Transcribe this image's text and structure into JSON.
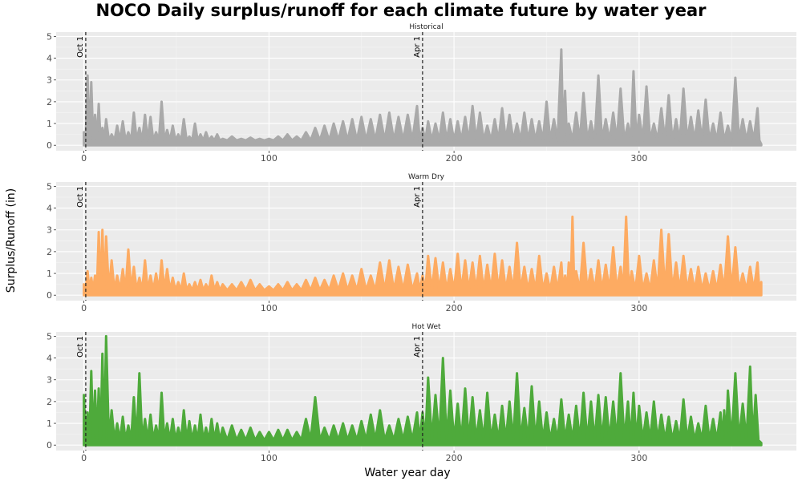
{
  "chart_data": {
    "type": "line",
    "title": "NOCO Daily surplus/runoff for each climate future by water year",
    "xlabel": "Water year day",
    "ylabel": "Surplus/Runoff (in)",
    "xlim": [
      -15,
      385
    ],
    "ylim": [
      -0.25,
      5.2
    ],
    "x_ticks": [
      0,
      100,
      200,
      300
    ],
    "y_ticks": [
      0,
      1,
      2,
      3,
      4,
      5
    ],
    "grid": true,
    "reference_lines": [
      {
        "x": 1,
        "label": "Oct 1"
      },
      {
        "x": 183,
        "label": "Apr 1"
      }
    ],
    "panels": [
      {
        "name": "Historical",
        "color": "#a9a9a9",
        "x": [
          0,
          2,
          4,
          6,
          8,
          10,
          12,
          15,
          18,
          21,
          24,
          27,
          30,
          33,
          36,
          39,
          42,
          45,
          48,
          51,
          54,
          57,
          60,
          63,
          66,
          69,
          72,
          75,
          80,
          85,
          90,
          95,
          100,
          105,
          110,
          115,
          120,
          125,
          130,
          135,
          140,
          145,
          150,
          155,
          160,
          165,
          170,
          175,
          180,
          183,
          186,
          190,
          194,
          198,
          202,
          206,
          210,
          214,
          218,
          222,
          226,
          230,
          234,
          238,
          242,
          246,
          250,
          254,
          258,
          260,
          262,
          266,
          270,
          274,
          278,
          282,
          286,
          290,
          294,
          297,
          300,
          304,
          308,
          312,
          316,
          320,
          324,
          328,
          332,
          336,
          340,
          344,
          348,
          352,
          356,
          360,
          364,
          366
        ],
        "y": [
          0.6,
          3.2,
          2.9,
          1.4,
          1.9,
          0.8,
          1.2,
          0.5,
          0.9,
          1.1,
          0.6,
          1.5,
          0.8,
          1.4,
          1.3,
          0.6,
          2.0,
          0.7,
          0.9,
          0.5,
          1.2,
          0.4,
          1.0,
          0.5,
          0.6,
          0.4,
          0.5,
          0.3,
          0.4,
          0.3,
          0.35,
          0.3,
          0.3,
          0.4,
          0.5,
          0.4,
          0.6,
          0.8,
          0.9,
          1.0,
          1.1,
          1.2,
          1.3,
          1.2,
          1.4,
          1.5,
          1.3,
          1.4,
          1.8,
          0.8,
          1.1,
          1.0,
          1.5,
          1.2,
          1.1,
          1.3,
          1.8,
          1.5,
          0.9,
          1.2,
          1.7,
          1.4,
          1.0,
          1.5,
          1.2,
          1.1,
          2.0,
          1.2,
          4.4,
          2.5,
          1.0,
          1.5,
          2.4,
          1.1,
          3.2,
          1.2,
          1.5,
          2.6,
          1.0,
          3.4,
          1.4,
          2.7,
          1.0,
          1.7,
          2.3,
          1.2,
          2.6,
          1.3,
          1.6,
          2.1,
          1.0,
          1.5,
          0.9,
          3.1,
          1.2,
          1.1,
          1.7,
          0.05
        ]
      },
      {
        "name": "Warm Dry",
        "color": "#fdab62",
        "x": [
          0,
          2,
          4,
          6,
          8,
          10,
          12,
          15,
          18,
          21,
          24,
          27,
          30,
          33,
          36,
          39,
          42,
          45,
          48,
          51,
          54,
          57,
          60,
          63,
          66,
          69,
          72,
          75,
          80,
          85,
          90,
          95,
          100,
          105,
          110,
          115,
          120,
          125,
          130,
          135,
          140,
          145,
          150,
          155,
          160,
          165,
          170,
          175,
          180,
          183,
          186,
          190,
          194,
          198,
          202,
          206,
          210,
          214,
          218,
          222,
          226,
          230,
          234,
          238,
          242,
          246,
          250,
          254,
          258,
          260,
          262,
          264,
          266,
          270,
          274,
          278,
          282,
          286,
          290,
          293,
          296,
          300,
          304,
          308,
          312,
          316,
          320,
          324,
          328,
          332,
          336,
          340,
          344,
          348,
          352,
          356,
          360,
          364,
          366
        ],
        "y": [
          0.5,
          1.1,
          0.8,
          0.9,
          2.9,
          3.0,
          2.7,
          1.6,
          0.9,
          1.2,
          2.1,
          1.3,
          0.8,
          1.6,
          0.9,
          1.0,
          1.6,
          1.2,
          0.8,
          0.6,
          1.0,
          0.5,
          0.6,
          0.7,
          0.5,
          0.9,
          0.6,
          0.5,
          0.5,
          0.6,
          0.7,
          0.5,
          0.4,
          0.5,
          0.6,
          0.5,
          0.7,
          0.8,
          0.7,
          0.9,
          1.0,
          0.9,
          1.2,
          0.9,
          1.5,
          1.6,
          1.3,
          1.4,
          1.0,
          0.9,
          1.8,
          1.7,
          1.5,
          1.2,
          1.9,
          1.6,
          1.5,
          1.8,
          1.4,
          1.9,
          1.6,
          1.3,
          2.4,
          1.3,
          1.2,
          1.8,
          1.0,
          1.3,
          1.5,
          0.9,
          1.5,
          3.6,
          1.1,
          2.4,
          1.2,
          1.6,
          1.4,
          2.2,
          1.3,
          3.6,
          1.1,
          1.8,
          1.0,
          1.6,
          3.0,
          2.8,
          1.5,
          1.8,
          1.2,
          1.3,
          1.0,
          1.1,
          1.4,
          2.7,
          2.2,
          1.0,
          1.3,
          1.5,
          0.6
        ]
      },
      {
        "name": "Hot Wet",
        "color": "#4eaa3b",
        "x": [
          0,
          2,
          4,
          6,
          8,
          10,
          12,
          15,
          18,
          21,
          24,
          27,
          30,
          33,
          36,
          39,
          42,
          45,
          48,
          51,
          54,
          57,
          60,
          63,
          66,
          69,
          72,
          75,
          80,
          85,
          90,
          95,
          100,
          105,
          110,
          115,
          120,
          125,
          130,
          135,
          140,
          145,
          150,
          155,
          160,
          165,
          170,
          175,
          180,
          183,
          186,
          190,
          194,
          198,
          202,
          206,
          210,
          214,
          218,
          222,
          226,
          230,
          234,
          238,
          242,
          246,
          250,
          254,
          258,
          262,
          266,
          270,
          274,
          278,
          282,
          286,
          290,
          294,
          297,
          300,
          304,
          308,
          312,
          316,
          320,
          324,
          328,
          332,
          336,
          340,
          344,
          346,
          348,
          352,
          356,
          360,
          363,
          366
        ],
        "y": [
          2.3,
          1.5,
          3.4,
          2.5,
          2.6,
          4.2,
          5.0,
          1.6,
          1.0,
          1.3,
          0.9,
          2.2,
          3.3,
          1.2,
          1.4,
          0.9,
          2.4,
          1.0,
          1.2,
          0.8,
          1.6,
          1.1,
          0.9,
          1.4,
          0.8,
          1.2,
          1.0,
          0.8,
          0.9,
          0.7,
          0.8,
          0.6,
          0.6,
          0.7,
          0.7,
          0.6,
          1.2,
          2.2,
          0.8,
          0.9,
          1.0,
          0.9,
          1.1,
          1.4,
          1.6,
          0.9,
          1.2,
          1.3,
          1.5,
          1.5,
          3.1,
          2.3,
          4.0,
          2.5,
          1.9,
          2.6,
          2.2,
          1.6,
          2.4,
          1.4,
          1.8,
          2.0,
          3.3,
          1.7,
          2.7,
          2.0,
          1.5,
          1.2,
          2.1,
          1.4,
          1.8,
          2.4,
          2.0,
          2.3,
          2.2,
          2.0,
          3.3,
          2.0,
          2.4,
          1.8,
          1.5,
          2.0,
          1.4,
          1.3,
          1.1,
          2.1,
          1.3,
          1.0,
          1.8,
          1.2,
          1.5,
          1.6,
          2.5,
          3.3,
          1.9,
          3.6,
          2.3,
          0.1
        ]
      }
    ]
  }
}
